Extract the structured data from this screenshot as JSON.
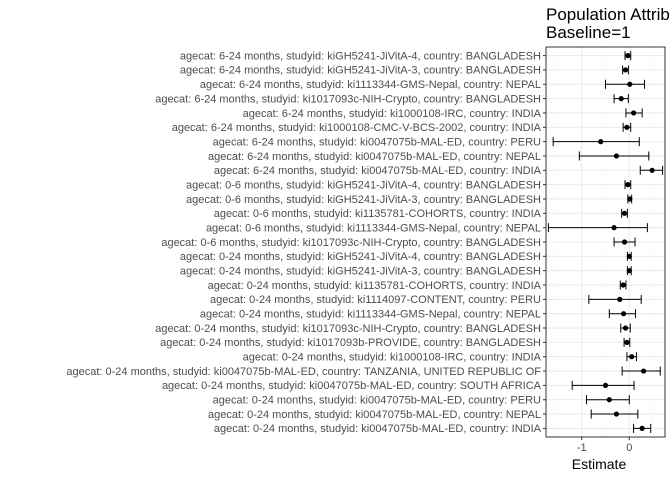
{
  "chart_data": {
    "type": "scatter",
    "title_lines": [
      "Population Attrib",
      "Baseline=1"
    ],
    "xlabel": "Estimate",
    "x_ticks": [
      -1,
      0
    ],
    "x_tick_labels": [
      "-1",
      "0"
    ],
    "xlim": [
      -1.75,
      0.75
    ],
    "grid": true,
    "rows": [
      {
        "label": "agecat: 6-24 months, studyid: kiGH5241-JiVitA-4, country: BANGLADESH",
        "est": -0.03,
        "lo": -0.09,
        "hi": 0.03
      },
      {
        "label": "agecat: 6-24 months, studyid: kiGH5241-JiVitA-3, country: BANGLADESH",
        "est": -0.08,
        "lo": -0.14,
        "hi": -0.02
      },
      {
        "label": "agecat: 6-24 months, studyid: ki1113344-GMS-Nepal, country: NEPAL",
        "est": 0.01,
        "lo": -0.5,
        "hi": 0.32
      },
      {
        "label": "agecat: 6-24 months, studyid: ki1017093c-NIH-Crypto, country: BANGLADESH",
        "est": -0.17,
        "lo": -0.32,
        "hi": -0.02
      },
      {
        "label": "agecat: 6-24 months, studyid: ki1000108-IRC, country: INDIA",
        "est": 0.09,
        "lo": -0.07,
        "hi": 0.27
      },
      {
        "label": "agecat: 6-24 months, studyid: ki1000108-CMC-V-BCS-2002, country: INDIA",
        "est": -0.05,
        "lo": -0.13,
        "hi": 0.03
      },
      {
        "label": "agecat: 6-24 months, studyid: ki0047075b-MAL-ED, country: PERU",
        "est": -0.6,
        "lo": -1.6,
        "hi": 0.21
      },
      {
        "label": "agecat: 6-24 months, studyid: ki0047075b-MAL-ED, country: NEPAL",
        "est": -0.27,
        "lo": -1.05,
        "hi": 0.41
      },
      {
        "label": "agecat: 6-24 months, studyid: ki0047075b-MAL-ED, country: INDIA",
        "est": 0.48,
        "lo": 0.23,
        "hi": 0.7
      },
      {
        "label": "agecat: 0-6 months, studyid: kiGH5241-JiVitA-4, country: BANGLADESH",
        "est": -0.03,
        "lo": -0.09,
        "hi": 0.03
      },
      {
        "label": "agecat: 0-6 months, studyid: kiGH5241-JiVitA-3, country: BANGLADESH",
        "est": 0.01,
        "lo": -0.03,
        "hi": 0.05
      },
      {
        "label": "agecat: 0-6 months, studyid: ki1135781-COHORTS, country: INDIA",
        "est": -0.1,
        "lo": -0.16,
        "hi": -0.04
      },
      {
        "label": "agecat: 0-6 months, studyid: ki1113344-GMS-Nepal, country: NEPAL",
        "est": -0.32,
        "lo": -1.7,
        "hi": 0.38
      },
      {
        "label": "agecat: 0-6 months, studyid: ki1017093c-NIH-Crypto, country: BANGLADESH",
        "est": -0.1,
        "lo": -0.32,
        "hi": 0.12
      },
      {
        "label": "agecat: 0-24 months, studyid: kiGH5241-JiVitA-4, country: BANGLADESH",
        "est": 0.0,
        "lo": -0.04,
        "hi": 0.04
      },
      {
        "label": "agecat: 0-24 months, studyid: kiGH5241-JiVitA-3, country: BANGLADESH",
        "est": 0.0,
        "lo": -0.04,
        "hi": 0.04
      },
      {
        "label": "agecat: 0-24 months, studyid: ki1135781-COHORTS, country: INDIA",
        "est": -0.13,
        "lo": -0.19,
        "hi": -0.07
      },
      {
        "label": "agecat: 0-24 months, studyid: ki1114097-CONTENT, country: PERU",
        "est": -0.2,
        "lo": -0.85,
        "hi": 0.25
      },
      {
        "label": "agecat: 0-24 months, studyid: ki1113344-GMS-Nepal, country: NEPAL",
        "est": -0.12,
        "lo": -0.42,
        "hi": 0.13
      },
      {
        "label": "agecat: 0-24 months, studyid: ki1017093c-NIH-Crypto, country: BANGLADESH",
        "est": -0.08,
        "lo": -0.18,
        "hi": 0.02
      },
      {
        "label": "agecat: 0-24 months, studyid: ki1017093b-PROVIDE, country: BANGLADESH",
        "est": -0.05,
        "lo": -0.11,
        "hi": 0.01
      },
      {
        "label": "agecat: 0-24 months, studyid: ki1000108-IRC, country: INDIA",
        "est": 0.05,
        "lo": -0.05,
        "hi": 0.15
      },
      {
        "label": "agecat: 0-24 months, studyid: ki0047075b-MAL-ED, country: TANZANIA, UNITED REPUBLIC OF",
        "est": 0.3,
        "lo": -0.15,
        "hi": 0.65
      },
      {
        "label": "agecat: 0-24 months, studyid: ki0047075b-MAL-ED, country: SOUTH AFRICA",
        "est": -0.5,
        "lo": -1.2,
        "hi": 0.1
      },
      {
        "label": "agecat: 0-24 months, studyid: ki0047075b-MAL-ED, country: PERU",
        "est": -0.42,
        "lo": -0.9,
        "hi": 0.0
      },
      {
        "label": "agecat: 0-24 months, studyid: ki0047075b-MAL-ED, country: NEPAL",
        "est": -0.27,
        "lo": -0.8,
        "hi": 0.18
      },
      {
        "label": "agecat: 0-24 months, studyid: ki0047075b-MAL-ED, country: INDIA",
        "est": 0.27,
        "lo": 0.09,
        "hi": 0.45
      }
    ]
  },
  "colors": {
    "panel_border": "#333333",
    "grid_major": "#ebebeb",
    "grid_minor": "#f5f5f5",
    "point": "#000000",
    "text": "#4d4d4d"
  }
}
